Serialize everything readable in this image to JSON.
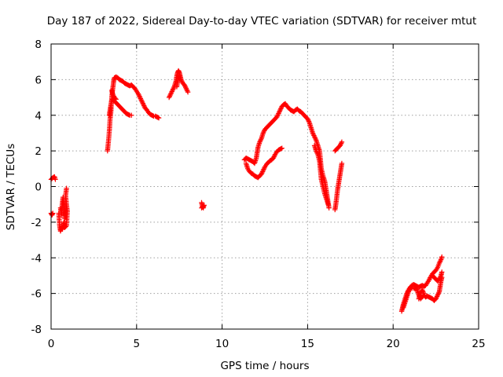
{
  "chart_data": {
    "type": "scatter",
    "title": "Day 187 of 2022, Sidereal Day-to-day VTEC variation (SDTVAR) for receiver mtut",
    "xlabel": "GPS time / hours",
    "ylabel": "SDTVAR / TECUs",
    "xlim": [
      0,
      25
    ],
    "ylim": [
      -8,
      8
    ],
    "xticks": [
      0,
      5,
      10,
      15,
      20,
      25
    ],
    "yticks": [
      -8,
      -6,
      -4,
      -2,
      0,
      2,
      4,
      6,
      8
    ],
    "grid": true,
    "marker": "+",
    "color": "#ff0000",
    "series": [
      {
        "name": "SDTVAR",
        "segments": [
          [
            [
              0.0,
              0.4
            ],
            [
              0.1,
              0.5
            ],
            [
              0.2,
              0.55
            ],
            [
              0.25,
              0.4
            ]
          ],
          [
            [
              0.0,
              -1.5
            ],
            [
              0.05,
              -1.6
            ],
            [
              0.1,
              -1.5
            ]
          ],
          [
            [
              0.45,
              -1.5
            ],
            [
              0.5,
              -2.2
            ],
            [
              0.55,
              -2.5
            ],
            [
              0.6,
              -2.3
            ],
            [
              0.65,
              -2.4
            ],
            [
              0.7,
              -2.2
            ],
            [
              0.75,
              -2.0
            ],
            [
              0.8,
              -2.3
            ],
            [
              0.9,
              -2.2
            ],
            [
              0.95,
              -1.4
            ],
            [
              0.9,
              -1.0
            ],
            [
              0.85,
              -0.5
            ],
            [
              0.9,
              -0.1
            ]
          ],
          [
            [
              0.55,
              -1.2
            ],
            [
              0.6,
              -1.6
            ],
            [
              0.65,
              -1.0
            ],
            [
              0.7,
              -0.6
            ],
            [
              0.75,
              -1.2
            ],
            [
              0.8,
              -1.8
            ],
            [
              0.85,
              -1.4
            ]
          ],
          [
            [
              3.3,
              2.0
            ],
            [
              3.33,
              2.3
            ],
            [
              3.38,
              2.8
            ],
            [
              3.42,
              3.3
            ],
            [
              3.45,
              3.8
            ],
            [
              3.5,
              4.2
            ],
            [
              3.52,
              4.6
            ],
            [
              3.55,
              5.0
            ],
            [
              3.58,
              5.3
            ],
            [
              3.62,
              5.6
            ],
            [
              3.66,
              5.9
            ],
            [
              3.7,
              6.1
            ],
            [
              3.8,
              6.15
            ],
            [
              3.9,
              6.1
            ],
            [
              4.0,
              6.0
            ],
            [
              4.1,
              5.95
            ],
            [
              4.2,
              5.9
            ],
            [
              4.3,
              5.8
            ],
            [
              4.4,
              5.75
            ],
            [
              4.5,
              5.7
            ],
            [
              4.6,
              5.65
            ],
            [
              4.7,
              5.7
            ],
            [
              4.8,
              5.6
            ],
            [
              4.9,
              5.5
            ],
            [
              5.0,
              5.35
            ],
            [
              5.1,
              5.2
            ],
            [
              5.2,
              5.0
            ],
            [
              5.3,
              4.8
            ],
            [
              5.4,
              4.6
            ],
            [
              5.5,
              4.4
            ],
            [
              5.6,
              4.3
            ],
            [
              5.7,
              4.15
            ],
            [
              5.8,
              4.05
            ],
            [
              5.9,
              4.0
            ],
            [
              6.0,
              3.95
            ],
            [
              6.1,
              3.95
            ],
            [
              6.2,
              3.9
            ],
            [
              6.3,
              3.85
            ]
          ],
          [
            [
              3.4,
              4.0
            ],
            [
              3.45,
              4.3
            ],
            [
              3.5,
              4.6
            ],
            [
              3.55,
              4.85
            ],
            [
              3.6,
              4.9
            ],
            [
              3.7,
              4.8
            ],
            [
              3.8,
              4.7
            ],
            [
              3.9,
              4.6
            ],
            [
              4.0,
              4.5
            ],
            [
              4.1,
              4.4
            ],
            [
              4.2,
              4.3
            ],
            [
              4.3,
              4.2
            ],
            [
              4.4,
              4.1
            ],
            [
              4.5,
              4.05
            ],
            [
              4.6,
              4.0
            ],
            [
              4.7,
              4.0
            ]
          ],
          [
            [
              3.55,
              5.4
            ],
            [
              3.6,
              5.2
            ],
            [
              3.7,
              5.0
            ],
            [
              3.8,
              4.9
            ]
          ],
          [
            [
              6.9,
              5.0
            ],
            [
              7.0,
              5.2
            ],
            [
              7.1,
              5.4
            ],
            [
              7.2,
              5.6
            ],
            [
              7.3,
              5.9
            ],
            [
              7.35,
              6.2
            ],
            [
              7.4,
              6.4
            ],
            [
              7.45,
              6.5
            ],
            [
              7.5,
              6.4
            ],
            [
              7.55,
              6.2
            ],
            [
              7.6,
              6.0
            ],
            [
              7.7,
              5.8
            ],
            [
              7.8,
              5.7
            ],
            [
              7.9,
              5.5
            ],
            [
              8.0,
              5.3
            ]
          ],
          [
            [
              7.35,
              5.6
            ],
            [
              7.4,
              5.9
            ],
            [
              7.45,
              6.1
            ],
            [
              7.5,
              6.2
            ]
          ],
          [
            [
              8.8,
              -0.9
            ],
            [
              8.85,
              -1.1
            ],
            [
              8.9,
              -1.2
            ],
            [
              8.95,
              -1.05
            ],
            [
              8.8,
              -1.2
            ]
          ],
          [
            [
              11.3,
              1.5
            ],
            [
              11.4,
              1.6
            ],
            [
              11.5,
              1.55
            ],
            [
              11.6,
              1.5
            ],
            [
              11.7,
              1.45
            ],
            [
              11.8,
              1.4
            ],
            [
              11.9,
              1.3
            ],
            [
              12.0,
              1.6
            ],
            [
              12.05,
              1.9
            ],
            [
              12.1,
              2.2
            ],
            [
              12.2,
              2.5
            ],
            [
              12.3,
              2.7
            ],
            [
              12.4,
              3.0
            ],
            [
              12.5,
              3.2
            ],
            [
              12.6,
              3.3
            ],
            [
              12.7,
              3.4
            ],
            [
              12.8,
              3.5
            ],
            [
              12.9,
              3.6
            ],
            [
              13.0,
              3.7
            ],
            [
              13.1,
              3.8
            ],
            [
              13.2,
              3.9
            ],
            [
              13.3,
              4.1
            ],
            [
              13.4,
              4.3
            ],
            [
              13.5,
              4.5
            ],
            [
              13.6,
              4.6
            ],
            [
              13.7,
              4.65
            ],
            [
              13.8,
              4.5
            ],
            [
              13.9,
              4.4
            ],
            [
              14.0,
              4.3
            ],
            [
              14.1,
              4.25
            ],
            [
              14.2,
              4.2
            ],
            [
              14.3,
              4.3
            ],
            [
              14.4,
              4.35
            ],
            [
              14.5,
              4.25
            ],
            [
              14.6,
              4.2
            ],
            [
              14.7,
              4.1
            ],
            [
              14.8,
              4.0
            ],
            [
              14.9,
              3.9
            ],
            [
              15.0,
              3.8
            ],
            [
              15.1,
              3.6
            ],
            [
              15.2,
              3.3
            ],
            [
              15.3,
              3.0
            ],
            [
              15.4,
              2.8
            ],
            [
              15.5,
              2.6
            ],
            [
              15.6,
              2.3
            ],
            [
              15.7,
              2.0
            ],
            [
              15.75,
              1.5
            ],
            [
              15.8,
              1.0
            ],
            [
              15.9,
              0.6
            ],
            [
              16.0,
              0.3
            ],
            [
              16.05,
              0.0
            ],
            [
              16.1,
              -0.3
            ],
            [
              16.15,
              -0.6
            ],
            [
              16.2,
              -0.9
            ],
            [
              16.25,
              -1.2
            ]
          ],
          [
            [
              11.4,
              1.3
            ],
            [
              11.5,
              1.0
            ],
            [
              11.6,
              0.85
            ],
            [
              11.7,
              0.75
            ],
            [
              11.8,
              0.7
            ],
            [
              11.9,
              0.6
            ],
            [
              12.0,
              0.55
            ],
            [
              12.1,
              0.5
            ],
            [
              12.2,
              0.6
            ],
            [
              12.3,
              0.7
            ],
            [
              12.4,
              0.9
            ],
            [
              12.5,
              1.1
            ],
            [
              12.6,
              1.25
            ],
            [
              12.7,
              1.35
            ],
            [
              12.8,
              1.45
            ],
            [
              12.9,
              1.5
            ],
            [
              13.0,
              1.6
            ],
            [
              13.1,
              1.8
            ],
            [
              13.2,
              1.95
            ],
            [
              13.3,
              2.05
            ],
            [
              13.4,
              2.1
            ],
            [
              13.5,
              2.15
            ]
          ],
          [
            [
              15.4,
              2.3
            ],
            [
              15.5,
              2.0
            ],
            [
              15.6,
              1.8
            ],
            [
              15.7,
              1.4
            ],
            [
              15.75,
              0.9
            ],
            [
              15.8,
              0.4
            ],
            [
              15.9,
              0.0
            ],
            [
              16.0,
              -0.4
            ],
            [
              16.1,
              -0.7
            ],
            [
              16.2,
              -1.0
            ]
          ],
          [
            [
              16.6,
              2.0
            ],
            [
              16.7,
              2.1
            ],
            [
              16.8,
              2.2
            ],
            [
              16.9,
              2.3
            ],
            [
              17.0,
              2.5
            ]
          ],
          [
            [
              16.6,
              -1.3
            ],
            [
              16.65,
              -1.0
            ],
            [
              16.7,
              -0.6
            ],
            [
              16.75,
              -0.2
            ],
            [
              16.8,
              0.1
            ],
            [
              16.85,
              0.4
            ],
            [
              16.9,
              0.7
            ],
            [
              16.95,
              1.0
            ],
            [
              17.0,
              1.3
            ]
          ],
          [
            [
              20.5,
              -7.0
            ],
            [
              20.55,
              -6.8
            ],
            [
              20.6,
              -6.6
            ],
            [
              20.7,
              -6.3
            ],
            [
              20.8,
              -6.0
            ],
            [
              20.9,
              -5.8
            ],
            [
              21.0,
              -5.65
            ],
            [
              21.1,
              -5.55
            ],
            [
              21.2,
              -5.5
            ],
            [
              21.3,
              -5.55
            ],
            [
              21.4,
              -5.6
            ],
            [
              21.5,
              -5.65
            ],
            [
              21.6,
              -5.6
            ],
            [
              21.7,
              -5.55
            ],
            [
              21.8,
              -5.6
            ],
            [
              21.9,
              -5.55
            ],
            [
              22.0,
              -5.4
            ],
            [
              22.1,
              -5.25
            ],
            [
              22.2,
              -5.05
            ],
            [
              22.3,
              -4.9
            ],
            [
              22.4,
              -4.8
            ],
            [
              22.5,
              -4.7
            ],
            [
              22.6,
              -4.55
            ],
            [
              22.7,
              -4.3
            ],
            [
              22.8,
              -4.1
            ],
            [
              22.85,
              -3.95
            ]
          ],
          [
            [
              20.6,
              -6.8
            ],
            [
              20.7,
              -6.5
            ],
            [
              20.8,
              -6.2
            ],
            [
              20.9,
              -5.9
            ],
            [
              21.0,
              -5.7
            ],
            [
              21.2,
              -5.7
            ],
            [
              21.4,
              -5.8
            ],
            [
              21.5,
              -6.1
            ],
            [
              21.6,
              -6.3
            ],
            [
              21.7,
              -6.2
            ],
            [
              21.8,
              -6.1
            ],
            [
              21.9,
              -6.2
            ],
            [
              22.0,
              -6.15
            ],
            [
              22.1,
              -6.2
            ],
            [
              22.2,
              -6.25
            ],
            [
              22.3,
              -6.3
            ],
            [
              22.4,
              -6.4
            ],
            [
              22.5,
              -6.3
            ],
            [
              22.6,
              -6.1
            ],
            [
              22.7,
              -5.9
            ],
            [
              22.75,
              -5.6
            ],
            [
              22.8,
              -5.3
            ],
            [
              22.85,
              -5.1
            ]
          ],
          [
            [
              22.3,
              -5.0
            ],
            [
              22.4,
              -5.1
            ],
            [
              22.5,
              -5.2
            ],
            [
              22.6,
              -5.3
            ],
            [
              22.7,
              -5.2
            ],
            [
              22.8,
              -5.0
            ],
            [
              22.85,
              -4.8
            ]
          ],
          [
            [
              21.5,
              -6.3
            ],
            [
              21.6,
              -6.0
            ],
            [
              21.7,
              -5.8
            ],
            [
              21.8,
              -6.0
            ]
          ]
        ]
      }
    ]
  }
}
